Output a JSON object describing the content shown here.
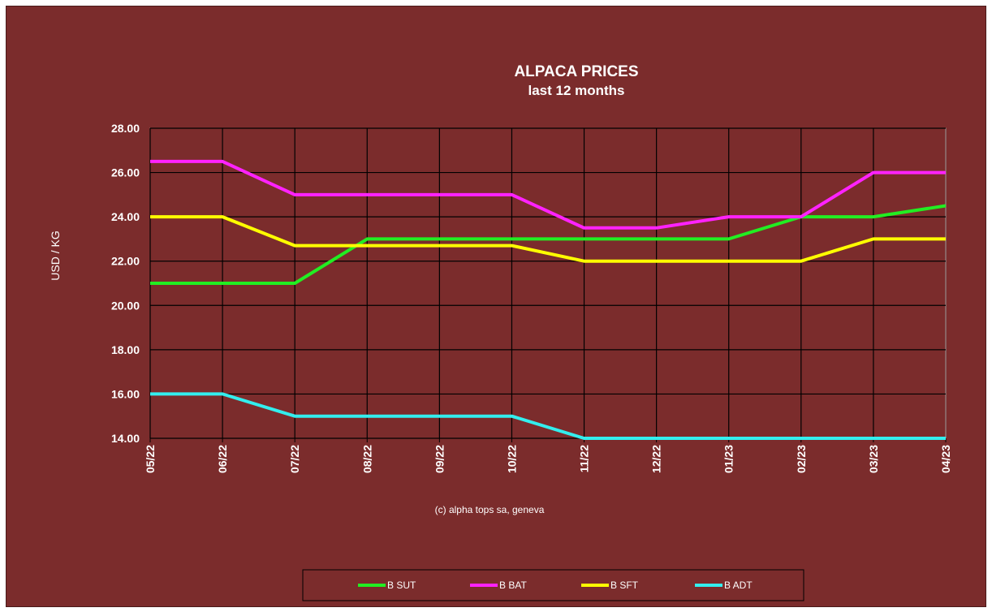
{
  "chart_data": {
    "type": "line",
    "title": "ALPACA PRICES",
    "subtitle": "last 12 months",
    "ylabel": "USD / KG",
    "credit": "(c) alpha tops sa, geneva",
    "ylim": [
      14,
      28
    ],
    "yticks": [
      "14.00",
      "16.00",
      "18.00",
      "20.00",
      "22.00",
      "24.00",
      "26.00",
      "28.00"
    ],
    "categories": [
      "05/22",
      "06/22",
      "07/22",
      "08/22",
      "09/22",
      "10/22",
      "11/22",
      "12/22",
      "01/23",
      "02/23",
      "03/23",
      "04/23"
    ],
    "grid": true,
    "legend_position": "bottom",
    "series": [
      {
        "name": "B SUT",
        "color": "#22ee22",
        "values": [
          21,
          21,
          21,
          23,
          23,
          23,
          23,
          23,
          23,
          24,
          24,
          24.5
        ]
      },
      {
        "name": "B BAT",
        "color": "#ff22ff",
        "values": [
          26.5,
          26.5,
          25,
          25,
          25,
          25,
          23.5,
          23.5,
          24,
          24,
          26,
          26
        ]
      },
      {
        "name": "B SFT",
        "color": "#ffff00",
        "values": [
          24,
          24,
          22.7,
          22.7,
          22.7,
          22.7,
          22,
          22,
          22,
          22,
          23,
          23
        ]
      },
      {
        "name": "B ADT",
        "color": "#33eeee",
        "values": [
          16,
          16,
          15,
          15,
          15,
          15,
          14,
          14,
          14,
          14,
          14,
          14
        ]
      }
    ]
  }
}
